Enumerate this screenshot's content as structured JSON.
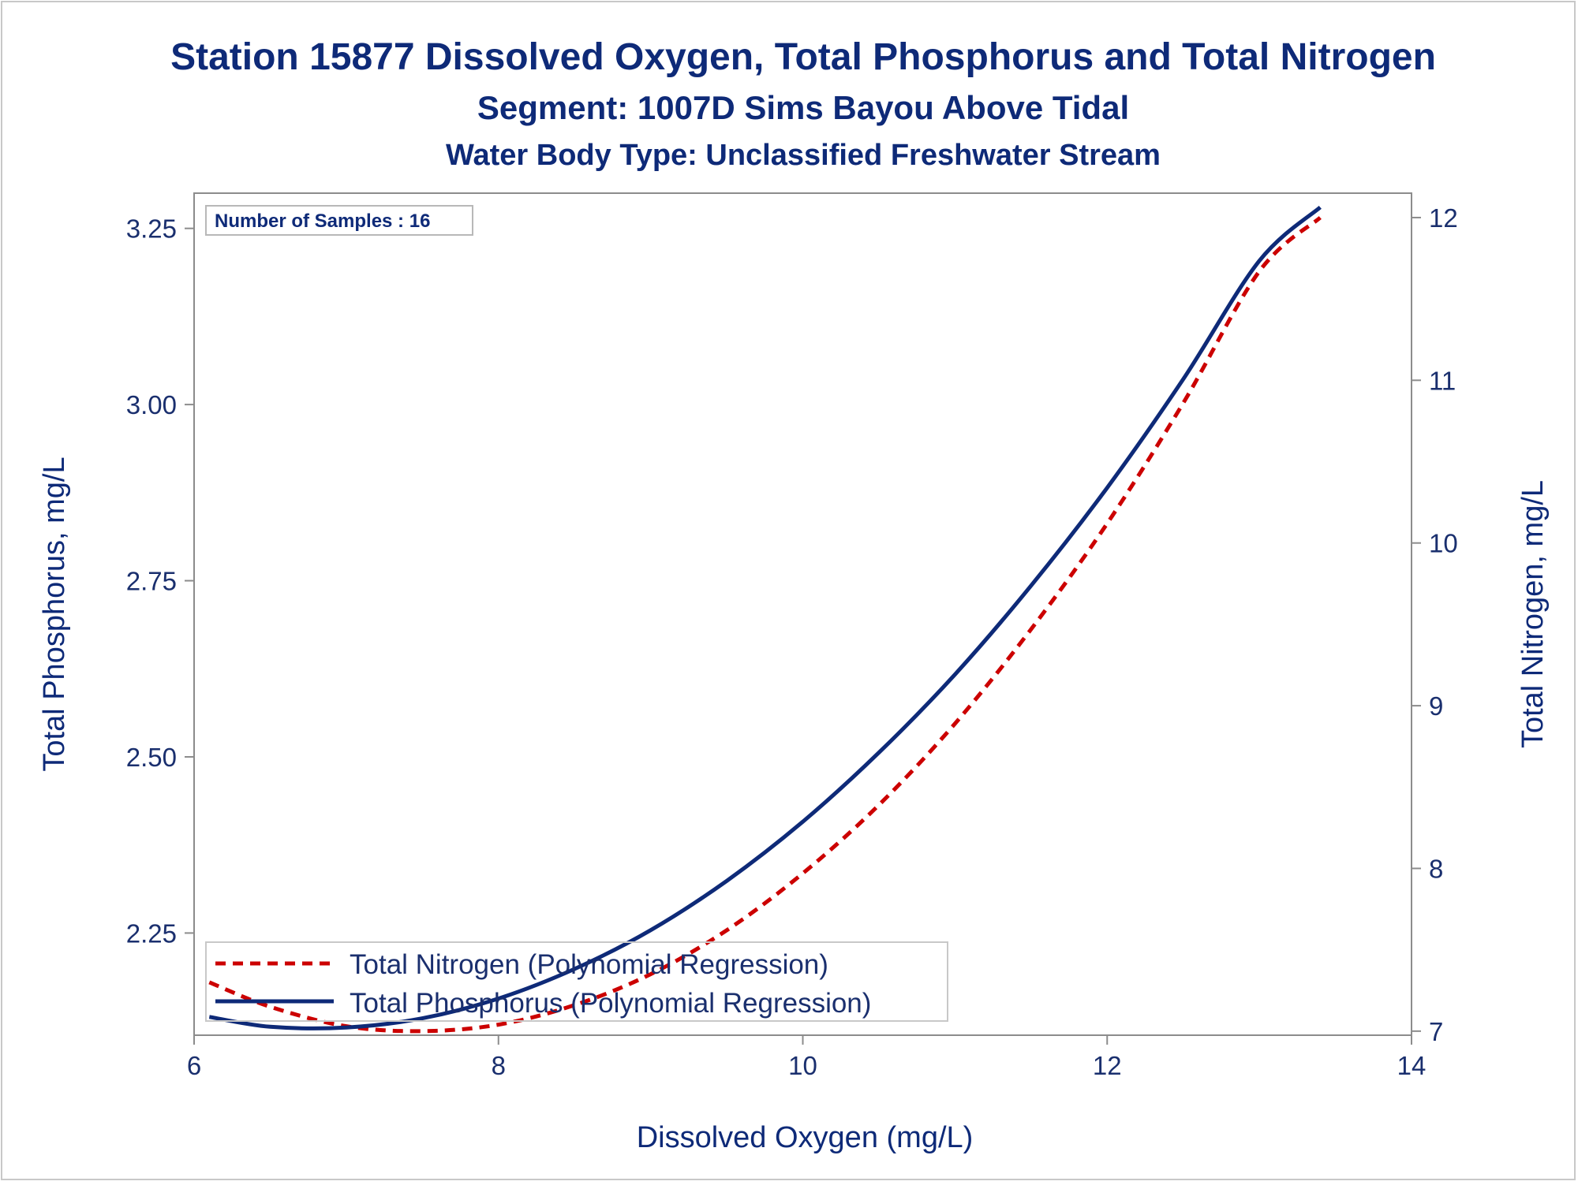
{
  "chart_data": {
    "type": "line",
    "title": "Station 15877  Dissolved Oxygen, Total Phosphorus and Total Nitrogen",
    "subtitle": "Segment: 1007D  Sims Bayou Above Tidal",
    "subtitle2": "Water Body Type: Unclassified Freshwater Stream",
    "xlabel": "Dissolved Oxygen (mg/L)",
    "ylabel_left": "Total Phosphorus, mg/L",
    "ylabel_right": "Total Nitrogen, mg/L",
    "xlim": [
      6,
      14
    ],
    "ylim_left": [
      2.105,
      3.3
    ],
    "ylim_right": [
      6.975,
      12.15
    ],
    "x_ticks": [
      "6",
      "8",
      "10",
      "12",
      "14"
    ],
    "y_left_ticks": [
      "2.25",
      "2.50",
      "2.75",
      "3.00",
      "3.25"
    ],
    "y_right_ticks": [
      "7",
      "8",
      "9",
      "10",
      "11",
      "12"
    ],
    "inset": "Number of Samples : 16",
    "grid": false,
    "legend_position": "bottom-left",
    "series": [
      {
        "name": "Total Nitrogen (Polynomial Regression)",
        "axis": "right",
        "color": "#cc0000",
        "dash": "dashed",
        "x": [
          6.1,
          6.5,
          7.0,
          7.5,
          8.0,
          8.5,
          9.0,
          9.5,
          10.0,
          10.5,
          11.0,
          11.5,
          12.0,
          12.5,
          13.0,
          13.4
        ],
        "values": [
          7.3,
          7.15,
          7.03,
          7.0,
          7.04,
          7.16,
          7.35,
          7.62,
          7.97,
          8.39,
          8.89,
          9.47,
          10.12,
          10.86,
          11.67,
          12.0
        ]
      },
      {
        "name": "Total Phosphorus (Polynomial Regression)",
        "axis": "left",
        "color": "#0e2a78",
        "dash": "solid",
        "x": [
          6.1,
          6.5,
          7.0,
          7.5,
          8.0,
          8.5,
          9.0,
          9.5,
          10.0,
          10.5,
          11.0,
          11.5,
          12.0,
          12.5,
          13.0,
          13.4
        ],
        "values": [
          2.131,
          2.117,
          2.116,
          2.129,
          2.157,
          2.199,
          2.254,
          2.324,
          2.408,
          2.506,
          2.617,
          2.743,
          2.882,
          3.036,
          3.204,
          3.28
        ]
      }
    ]
  }
}
